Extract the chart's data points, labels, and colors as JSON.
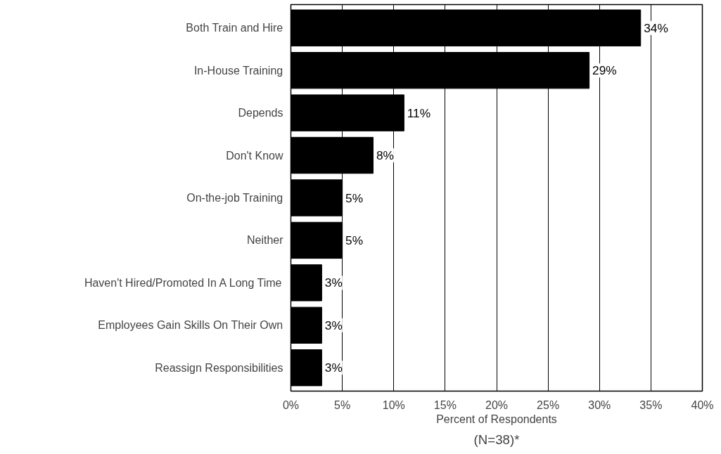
{
  "chart_data": {
    "type": "bar",
    "orientation": "horizontal",
    "categories": [
      "Both Train and Hire",
      "In-House Training",
      "Depends",
      "Don't Know",
      "On-the-job Training",
      "Neither",
      "Haven't Hired/Promoted In A Long Time",
      "Employees Gain Skills On Their Own",
      "Reassign Responsibilities"
    ],
    "values": [
      34,
      29,
      11,
      8,
      5,
      5,
      3,
      3,
      3
    ],
    "value_labels": [
      "34%",
      "29%",
      "11%",
      "8%",
      "5%",
      "5%",
      "3%",
      "3%",
      "3%"
    ],
    "color": "#000000",
    "xlim": [
      0,
      40
    ],
    "xticks": [
      {
        "value": 0,
        "label": "0%"
      },
      {
        "value": 5,
        "label": "5%"
      },
      {
        "value": 10,
        "label": "10%"
      },
      {
        "value": 15,
        "label": "15%"
      },
      {
        "value": 20,
        "label": "20%"
      },
      {
        "value": 25,
        "label": "25%"
      },
      {
        "value": 30,
        "label": "30%"
      },
      {
        "value": 35,
        "label": "35%"
      },
      {
        "value": 40,
        "label": "40%"
      }
    ],
    "xlabel": "Percent of Respondents",
    "annotations": [
      "(N=38)*"
    ],
    "grid": "x"
  }
}
